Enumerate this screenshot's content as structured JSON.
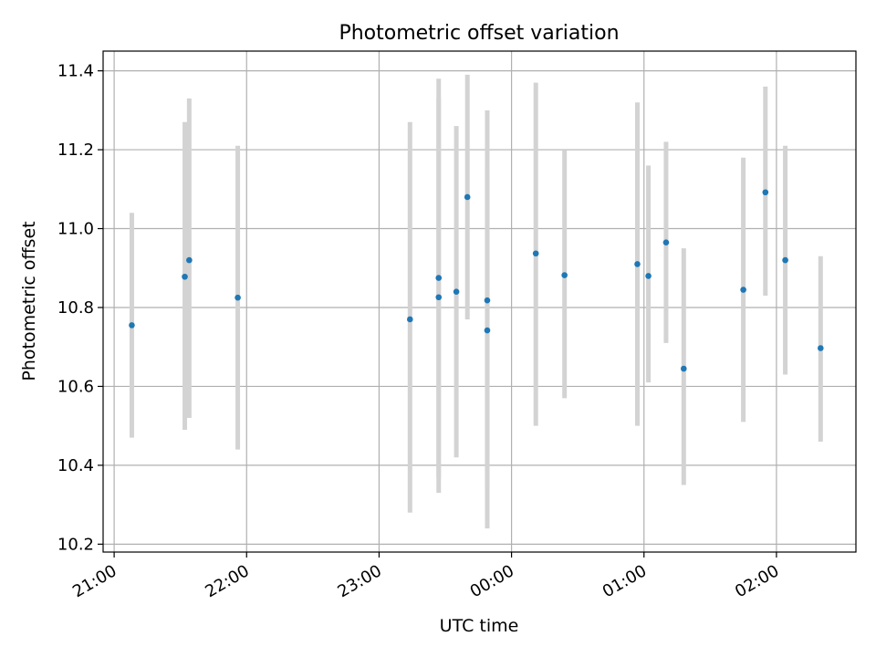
{
  "chart_data": {
    "type": "scatter",
    "title": "Photometric offset variation",
    "xlabel": "UTC time",
    "ylabel": "Photometric offset",
    "x_ticks": [
      "21:00",
      "22:00",
      "23:00",
      "00:00",
      "01:00",
      "02:00"
    ],
    "y_ticks": [
      "10.2",
      "10.4",
      "10.6",
      "10.8",
      "11.0",
      "11.2",
      "11.4"
    ],
    "xlim": [
      "20:55",
      "02:36"
    ],
    "ylim": [
      10.18,
      11.45
    ],
    "grid": true,
    "colors": {
      "marker": "#1f77b4",
      "errorbar": "#d3d3d3",
      "grid": "#b0b0b0"
    },
    "series": [
      {
        "points": [
          {
            "x": "21:08",
            "y": 10.755,
            "ylo": 10.47,
            "yhi": 11.04
          },
          {
            "x": "21:32",
            "y": 10.878,
            "ylo": 10.49,
            "yhi": 11.27
          },
          {
            "x": "21:34",
            "y": 10.92,
            "ylo": 10.52,
            "yhi": 11.33
          },
          {
            "x": "21:56",
            "y": 10.825,
            "ylo": 10.44,
            "yhi": 11.21
          },
          {
            "x": "23:14",
            "y": 10.77,
            "ylo": 10.28,
            "yhi": 11.27
          },
          {
            "x": "23:27",
            "y": 10.875,
            "ylo": 10.37,
            "yhi": 11.38
          },
          {
            "x": "23:27",
            "y": 10.826,
            "ylo": 10.33,
            "yhi": 11.33
          },
          {
            "x": "23:35",
            "y": 10.84,
            "ylo": 10.42,
            "yhi": 11.26
          },
          {
            "x": "23:40",
            "y": 11.08,
            "ylo": 10.77,
            "yhi": 11.39
          },
          {
            "x": "23:49",
            "y": 10.742,
            "ylo": 10.34,
            "yhi": 11.15
          },
          {
            "x": "23:49",
            "y": 10.818,
            "ylo": 10.24,
            "yhi": 11.3
          },
          {
            "x": "00:11",
            "y": 10.937,
            "ylo": 10.5,
            "yhi": 11.37
          },
          {
            "x": "00:24",
            "y": 10.882,
            "ylo": 10.57,
            "yhi": 11.2
          },
          {
            "x": "00:57",
            "y": 10.91,
            "ylo": 10.5,
            "yhi": 11.32
          },
          {
            "x": "01:02",
            "y": 10.88,
            "ylo": 10.61,
            "yhi": 11.16
          },
          {
            "x": "01:10",
            "y": 10.965,
            "ylo": 10.71,
            "yhi": 11.22
          },
          {
            "x": "01:18",
            "y": 10.645,
            "ylo": 10.35,
            "yhi": 10.95
          },
          {
            "x": "01:45",
            "y": 10.845,
            "ylo": 10.51,
            "yhi": 11.18
          },
          {
            "x": "01:55",
            "y": 11.092,
            "ylo": 10.83,
            "yhi": 11.36
          },
          {
            "x": "02:04",
            "y": 10.92,
            "ylo": 10.63,
            "yhi": 11.21
          },
          {
            "x": "02:20",
            "y": 10.697,
            "ylo": 10.46,
            "yhi": 10.93
          }
        ]
      }
    ]
  }
}
